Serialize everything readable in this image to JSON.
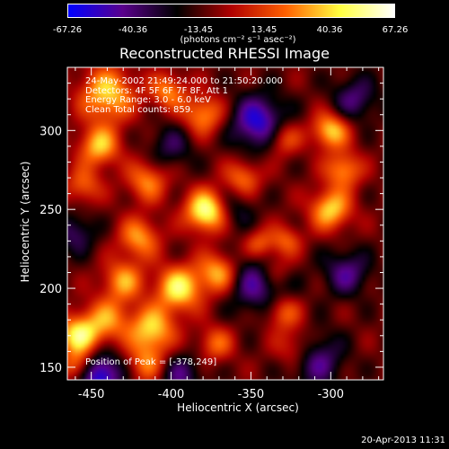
{
  "colorbar": {
    "ticks": [
      "-67.26",
      "-40.36",
      "-13.45",
      "13.45",
      "40.36",
      "67.26"
    ],
    "unit": "(photons cm⁻² s⁻¹ asec⁻²)",
    "colors": [
      "#0000ff",
      "#5a008c",
      "#000000",
      "#b00000",
      "#ff6000",
      "#ffff40",
      "#ffffff"
    ]
  },
  "chart_data": {
    "type": "heatmap",
    "title": "Reconstructed RHESSI Image",
    "xlabel": "Heliocentric X (arcsec)",
    "ylabel": "Heliocentric Y (arcsec)",
    "xlim": [
      -465,
      -267
    ],
    "ylim": [
      142,
      340
    ],
    "xticks": [
      -450,
      -400,
      -350,
      -300
    ],
    "yticks": [
      150,
      200,
      250,
      300
    ],
    "xtick_labels": [
      "-450",
      "-400",
      "-350",
      "-300"
    ],
    "ytick_labels": [
      "150",
      "200",
      "250",
      "300"
    ],
    "peak": [
      -378,
      249
    ],
    "blobs": [
      {
        "x": -378,
        "y": 249,
        "a": 1.0,
        "s": 9
      },
      {
        "x": -440,
        "y": 323,
        "a": 0.75,
        "s": 12
      },
      {
        "x": -402,
        "y": 325,
        "a": 0.55,
        "s": 8
      },
      {
        "x": -380,
        "y": 310,
        "a": 0.6,
        "s": 9
      },
      {
        "x": -445,
        "y": 290,
        "a": 0.7,
        "s": 9
      },
      {
        "x": -455,
        "y": 265,
        "a": 0.45,
        "s": 8
      },
      {
        "x": -415,
        "y": 268,
        "a": 0.55,
        "s": 9
      },
      {
        "x": -420,
        "y": 232,
        "a": 0.6,
        "s": 9
      },
      {
        "x": -395,
        "y": 200,
        "a": 0.85,
        "s": 10
      },
      {
        "x": -370,
        "y": 210,
        "a": 0.7,
        "s": 9
      },
      {
        "x": -345,
        "y": 228,
        "a": 0.5,
        "s": 7
      },
      {
        "x": -430,
        "y": 205,
        "a": 0.6,
        "s": 9
      },
      {
        "x": -440,
        "y": 180,
        "a": 0.55,
        "s": 10
      },
      {
        "x": -412,
        "y": 174,
        "a": 0.75,
        "s": 10
      },
      {
        "x": -458,
        "y": 170,
        "a": 0.85,
        "s": 9
      },
      {
        "x": -458,
        "y": 150,
        "a": 0.6,
        "s": 7
      },
      {
        "x": -415,
        "y": 152,
        "a": 0.5,
        "s": 9
      },
      {
        "x": -372,
        "y": 165,
        "a": 0.45,
        "s": 8
      },
      {
        "x": -330,
        "y": 185,
        "a": 0.5,
        "s": 8
      },
      {
        "x": -322,
        "y": 162,
        "a": 0.45,
        "s": 9
      },
      {
        "x": -335,
        "y": 212,
        "a": 0.45,
        "s": 8
      },
      {
        "x": -300,
        "y": 300,
        "a": 0.75,
        "s": 8
      },
      {
        "x": -292,
        "y": 275,
        "a": 0.6,
        "s": 8
      },
      {
        "x": -300,
        "y": 250,
        "a": 0.75,
        "s": 9
      },
      {
        "x": -330,
        "y": 295,
        "a": 0.5,
        "s": 8
      },
      {
        "x": -355,
        "y": 270,
        "a": 0.5,
        "s": 8
      },
      {
        "x": -328,
        "y": 230,
        "a": 0.45,
        "s": 7
      },
      {
        "x": -345,
        "y": 305,
        "a": -0.75,
        "s": 12
      },
      {
        "x": -345,
        "y": 205,
        "a": -0.6,
        "s": 14
      },
      {
        "x": -445,
        "y": 145,
        "a": -0.85,
        "s": 10
      },
      {
        "x": -310,
        "y": 155,
        "a": -0.55,
        "s": 12
      },
      {
        "x": -285,
        "y": 320,
        "a": -0.45,
        "s": 10
      },
      {
        "x": -400,
        "y": 290,
        "a": -0.35,
        "s": 10
      },
      {
        "x": -460,
        "y": 235,
        "a": -0.4,
        "s": 9
      },
      {
        "x": -395,
        "y": 145,
        "a": -0.45,
        "s": 10
      },
      {
        "x": -290,
        "y": 210,
        "a": -0.5,
        "s": 10
      },
      {
        "x": -360,
        "y": 250,
        "a": -0.3,
        "s": 9
      }
    ]
  },
  "overlay": {
    "line1": "24-May-2002 21:49:24.000 to 21:50:20.000",
    "line2": "Detectors: 4F 5F 6F 7F 8F, Att 1",
    "line3": "Energy Range: 3.0 - 6.0 keV",
    "line4": "Clean     Total counts: 859."
  },
  "peak_text": "Position of Peak = [-378,249]",
  "timestamp": "20-Apr-2013 11:31"
}
